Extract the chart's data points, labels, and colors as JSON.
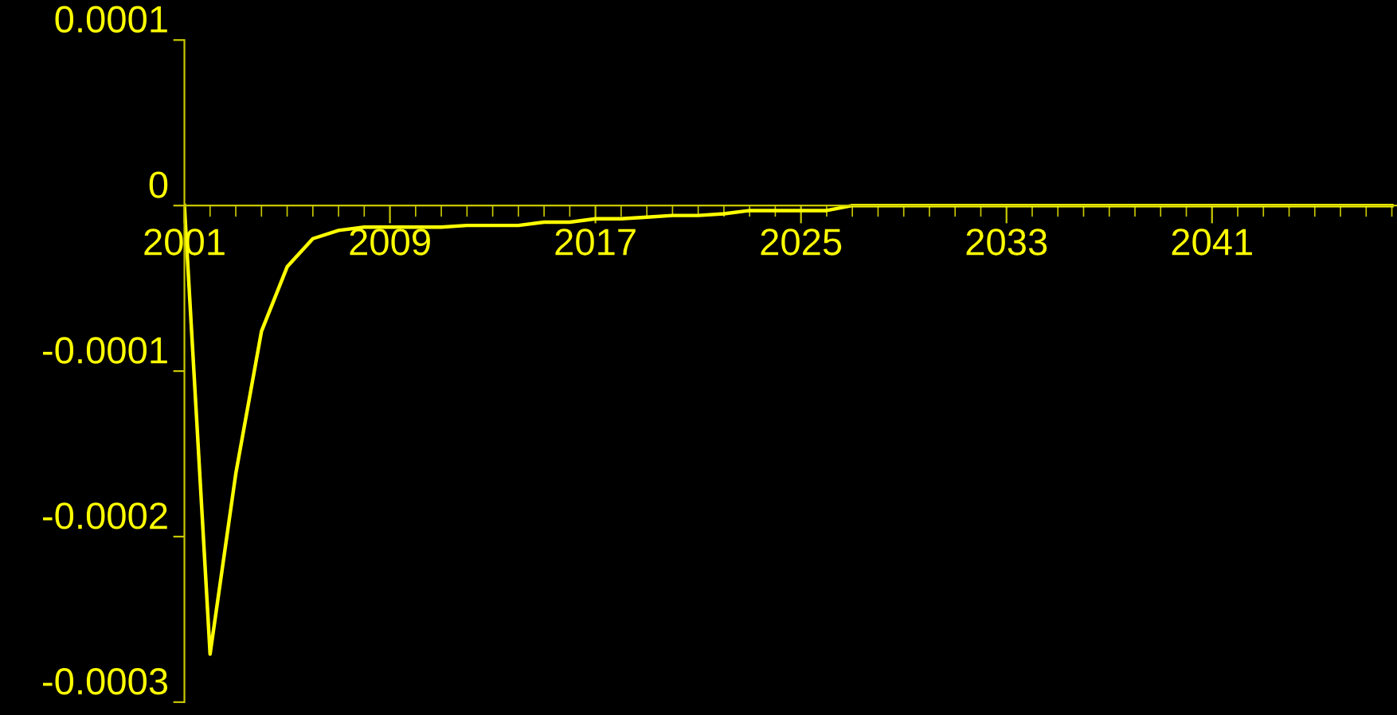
{
  "chart_data": {
    "type": "line",
    "x": [
      2001,
      2002,
      2003,
      2004,
      2005,
      2006,
      2007,
      2008,
      2009,
      2010,
      2011,
      2012,
      2013,
      2014,
      2015,
      2016,
      2017,
      2018,
      2019,
      2020,
      2021,
      2022,
      2023,
      2024,
      2025,
      2026,
      2027,
      2028,
      2029,
      2030,
      2031,
      2032,
      2033,
      2034,
      2035,
      2036,
      2037,
      2038,
      2039,
      2040,
      2041,
      2042,
      2043,
      2044,
      2045,
      2046,
      2047,
      2048
    ],
    "series": [
      {
        "color": "#ffff00",
        "values": [
          0,
          -0.000271,
          -0.000162,
          -7.6e-05,
          -3.7e-05,
          -2e-05,
          -1.5e-05,
          -1.3e-05,
          -1.3e-05,
          -1.3e-05,
          -1.3e-05,
          -1.2e-05,
          -1.2e-05,
          -1.2e-05,
          -1e-05,
          -1e-05,
          -8e-06,
          -8e-06,
          -7e-06,
          -6e-06,
          -6e-06,
          -5e-06,
          -3e-06,
          -3e-06,
          -3e-06,
          -3e-06,
          0,
          0,
          0,
          0,
          0,
          0,
          0,
          0,
          0,
          0,
          0,
          0,
          0,
          0,
          0,
          0,
          0,
          0,
          0,
          0,
          0,
          0
        ]
      }
    ],
    "xlim": [
      2001,
      2048.2
    ],
    "xticks": [
      2001,
      2009,
      2017,
      2025,
      2033,
      2041
    ],
    "ylim": [
      -0.0003,
      0.0001
    ],
    "yticks": [
      0.0001,
      0,
      -0.0001,
      -0.0002,
      -0.0003
    ],
    "grid": false,
    "marker": "none",
    "line_style": "solid"
  }
}
